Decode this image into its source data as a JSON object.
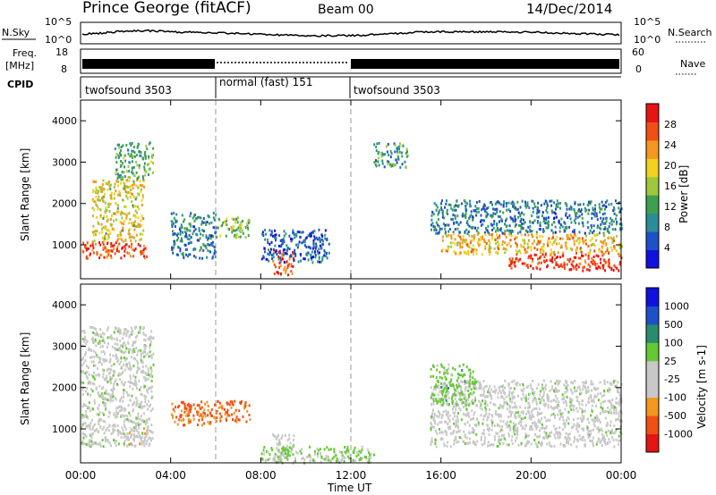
{
  "header": {
    "station": "Prince George (fitACF)",
    "beam": "Beam 00",
    "date": "14/Dec/2014"
  },
  "top_panels": {
    "nsky_label": "N.Sky",
    "nsky_ticks": [
      "10^5",
      "10^0"
    ],
    "nsearch_label": "N.Search",
    "nsearch_ticks": [
      "10^5",
      "10^0"
    ],
    "freq_label_1": "Freq.",
    "freq_label_2": "[MHz]",
    "freq_ticks": [
      "18",
      "8"
    ],
    "nave_label": "Nave",
    "nave_ticks": [
      "60",
      "0"
    ],
    "cpid_label": "CPID",
    "cpid_segments": [
      {
        "label": "twofsound 3503",
        "start": 0,
        "end": 6
      },
      {
        "label": "normal (fast) 151",
        "start": 6,
        "end": 12
      },
      {
        "label": "twofsound 3503",
        "start": 12,
        "end": 24
      }
    ]
  },
  "chart_data": [
    {
      "type": "heatmap",
      "title": "",
      "xlabel": "",
      "ylabel": "Slant Range [km]",
      "xlim": [
        0,
        24
      ],
      "ylim": [
        180,
        4500
      ],
      "y_ticks": [
        "4000",
        "3000",
        "2000",
        "1000"
      ],
      "colorbar": {
        "label": "Power [dB]",
        "ticks": [
          "28",
          "24",
          "20",
          "16",
          "12",
          "8",
          "4"
        ],
        "range": [
          0,
          30
        ],
        "colors": [
          "#1010e0",
          "#1e50c8",
          "#2a8c96",
          "#3ca050",
          "#9ec83c",
          "#f0d21e",
          "#f5961e",
          "#f05014",
          "#e61414"
        ]
      },
      "series": [
        {
          "t_start": 0.0,
          "t_end": 3.0,
          "r_start": 700,
          "r_end": 1100,
          "value": 26
        },
        {
          "t_start": 0.5,
          "t_end": 2.8,
          "r_start": 1100,
          "r_end": 2600,
          "value": 18
        },
        {
          "t_start": 1.5,
          "t_end": 3.2,
          "r_start": 2600,
          "r_end": 3500,
          "value": 12
        },
        {
          "t_start": 4.0,
          "t_end": 6.0,
          "r_start": 700,
          "r_end": 1800,
          "value": 8
        },
        {
          "t_start": 6.0,
          "t_end": 7.5,
          "r_start": 1200,
          "r_end": 1700,
          "value": 14
        },
        {
          "t_start": 8.5,
          "t_end": 9.5,
          "r_start": 300,
          "r_end": 900,
          "value": 26
        },
        {
          "t_start": 8.0,
          "t_end": 11.0,
          "r_start": 600,
          "r_end": 1400,
          "value": 6
        },
        {
          "t_start": 13.0,
          "t_end": 14.5,
          "r_start": 2900,
          "r_end": 3500,
          "value": 10
        },
        {
          "t_start": 15.5,
          "t_end": 24.0,
          "r_start": 1300,
          "r_end": 2100,
          "value": 8
        },
        {
          "t_start": 16.0,
          "t_end": 24.0,
          "r_start": 800,
          "r_end": 1300,
          "value": 20
        },
        {
          "t_start": 19.0,
          "t_end": 24.0,
          "r_start": 400,
          "r_end": 800,
          "value": 27
        }
      ]
    },
    {
      "type": "heatmap",
      "title": "",
      "xlabel": "Time UT",
      "ylabel": "Slant Range [km]",
      "xlim": [
        0,
        24
      ],
      "ylim": [
        180,
        4500
      ],
      "y_ticks": [
        "4000",
        "3000",
        "2000",
        "1000"
      ],
      "x_ticks": [
        "00:00",
        "04:00",
        "08:00",
        "12:00",
        "16:00",
        "20:00",
        "00:00"
      ],
      "colorbar": {
        "label": "Velocity [m s-1]",
        "ticks": [
          "1000",
          "500",
          "100",
          "25",
          "-25",
          "-100",
          "-500",
          "-1000"
        ],
        "range": [
          -1000,
          1000
        ],
        "colors": [
          "#e61414",
          "#f05014",
          "#f5961e",
          "#c8c8c8",
          "#c8c8c8",
          "#64c832",
          "#2a8c6e",
          "#1e50c8",
          "#1010e0"
        ]
      },
      "series": [
        {
          "t_start": 0.0,
          "t_end": 3.2,
          "r_start": 600,
          "r_end": 3500,
          "value": 0
        },
        {
          "t_start": 2.0,
          "t_end": 3.0,
          "r_start": 600,
          "r_end": 1100,
          "value": -200
        },
        {
          "t_start": 4.0,
          "t_end": 6.0,
          "r_start": 1100,
          "r_end": 1700,
          "value": -600
        },
        {
          "t_start": 6.0,
          "t_end": 7.5,
          "r_start": 1200,
          "r_end": 1700,
          "value": -600
        },
        {
          "t_start": 8.5,
          "t_end": 9.5,
          "r_start": 300,
          "r_end": 900,
          "value": 0
        },
        {
          "t_start": 8.0,
          "t_end": 13.0,
          "r_start": 200,
          "r_end": 600,
          "value": 150
        },
        {
          "t_start": 15.5,
          "t_end": 24.0,
          "r_start": 600,
          "r_end": 2200,
          "value": 0
        },
        {
          "t_start": 15.5,
          "t_end": 17.5,
          "r_start": 1600,
          "r_end": 2600,
          "value": 200
        }
      ]
    }
  ]
}
